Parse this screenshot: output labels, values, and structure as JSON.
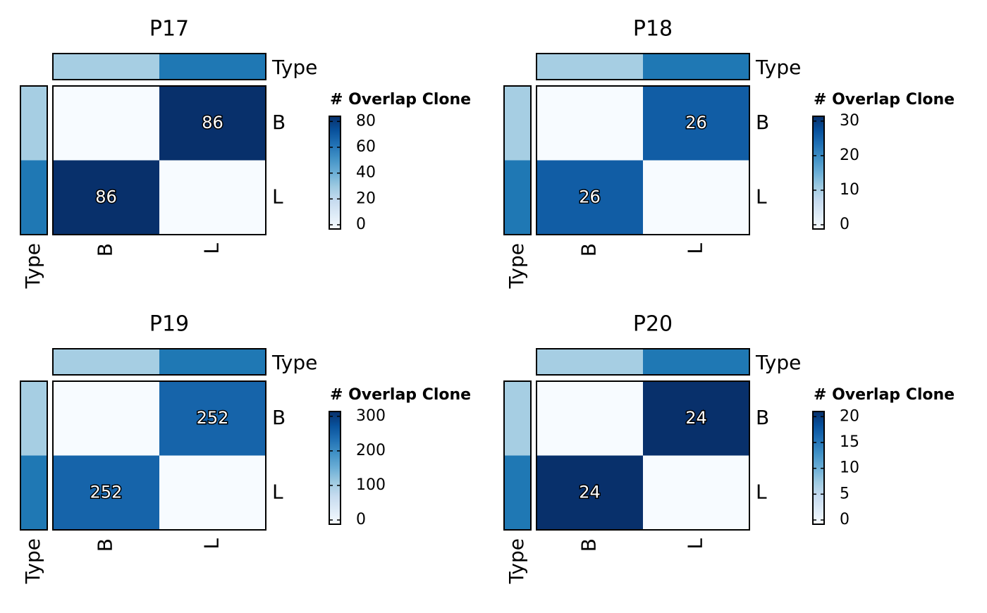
{
  "chart_data": [
    {
      "type": "heatmap",
      "title": "P17",
      "categories": [
        "B",
        "L"
      ],
      "rows": [
        "B",
        "L"
      ],
      "values": [
        [
          0,
          86
        ],
        [
          86,
          0
        ]
      ],
      "annotation_title": "Type",
      "annotation_colors": [
        "#a6cee3",
        "#1f78b4"
      ],
      "legend_title": "# Overlap Clone",
      "colormap": "Blues",
      "zlim": [
        0,
        84
      ],
      "zticks": [
        0,
        20,
        40,
        60,
        80
      ]
    },
    {
      "type": "heatmap",
      "title": "P18",
      "categories": [
        "B",
        "L"
      ],
      "rows": [
        "B",
        "L"
      ],
      "values": [
        [
          0,
          26
        ],
        [
          26,
          0
        ]
      ],
      "annotation_title": "Type",
      "annotation_colors": [
        "#a6cee3",
        "#1f78b4"
      ],
      "legend_title": "# Overlap Clone",
      "colormap": "Blues",
      "zlim": [
        0,
        31.4
      ],
      "zticks": [
        0,
        10,
        20,
        30
      ]
    },
    {
      "type": "heatmap",
      "title": "P19",
      "categories": [
        "B",
        "L"
      ],
      "rows": [
        "B",
        "L"
      ],
      "values": [
        [
          0,
          252
        ],
        [
          252,
          0
        ]
      ],
      "annotation_title": "Type",
      "annotation_colors": [
        "#a6cee3",
        "#1f78b4"
      ],
      "legend_title": "# Overlap Clone",
      "colormap": "Blues",
      "zlim": [
        0,
        314
      ],
      "zticks": [
        0,
        100,
        200,
        300
      ]
    },
    {
      "type": "heatmap",
      "title": "P20",
      "categories": [
        "B",
        "L"
      ],
      "rows": [
        "B",
        "L"
      ],
      "values": [
        [
          0,
          24
        ],
        [
          24,
          0
        ]
      ],
      "annotation_title": "Type",
      "annotation_colors": [
        "#a6cee3",
        "#1f78b4"
      ],
      "legend_title": "# Overlap Clone",
      "colormap": "Blues",
      "zlim": [
        0,
        21
      ],
      "zticks": [
        0,
        5,
        10,
        15,
        20
      ]
    }
  ]
}
